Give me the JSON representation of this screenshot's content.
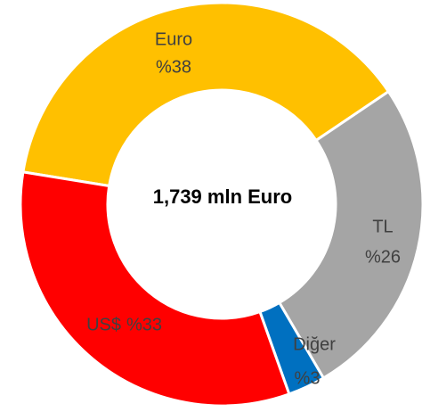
{
  "chart_data": {
    "type": "donut",
    "center_label": "1,739 mln Euro",
    "categories": [
      "Euro",
      "TL",
      "Diğer",
      "US$"
    ],
    "values": [
      38,
      26,
      3,
      33
    ],
    "value_labels": [
      "%38",
      "%26",
      "%3",
      "%33"
    ],
    "colors": [
      "#FFC000",
      "#A5A5A5",
      "#0070C0",
      "#FF0000"
    ]
  }
}
